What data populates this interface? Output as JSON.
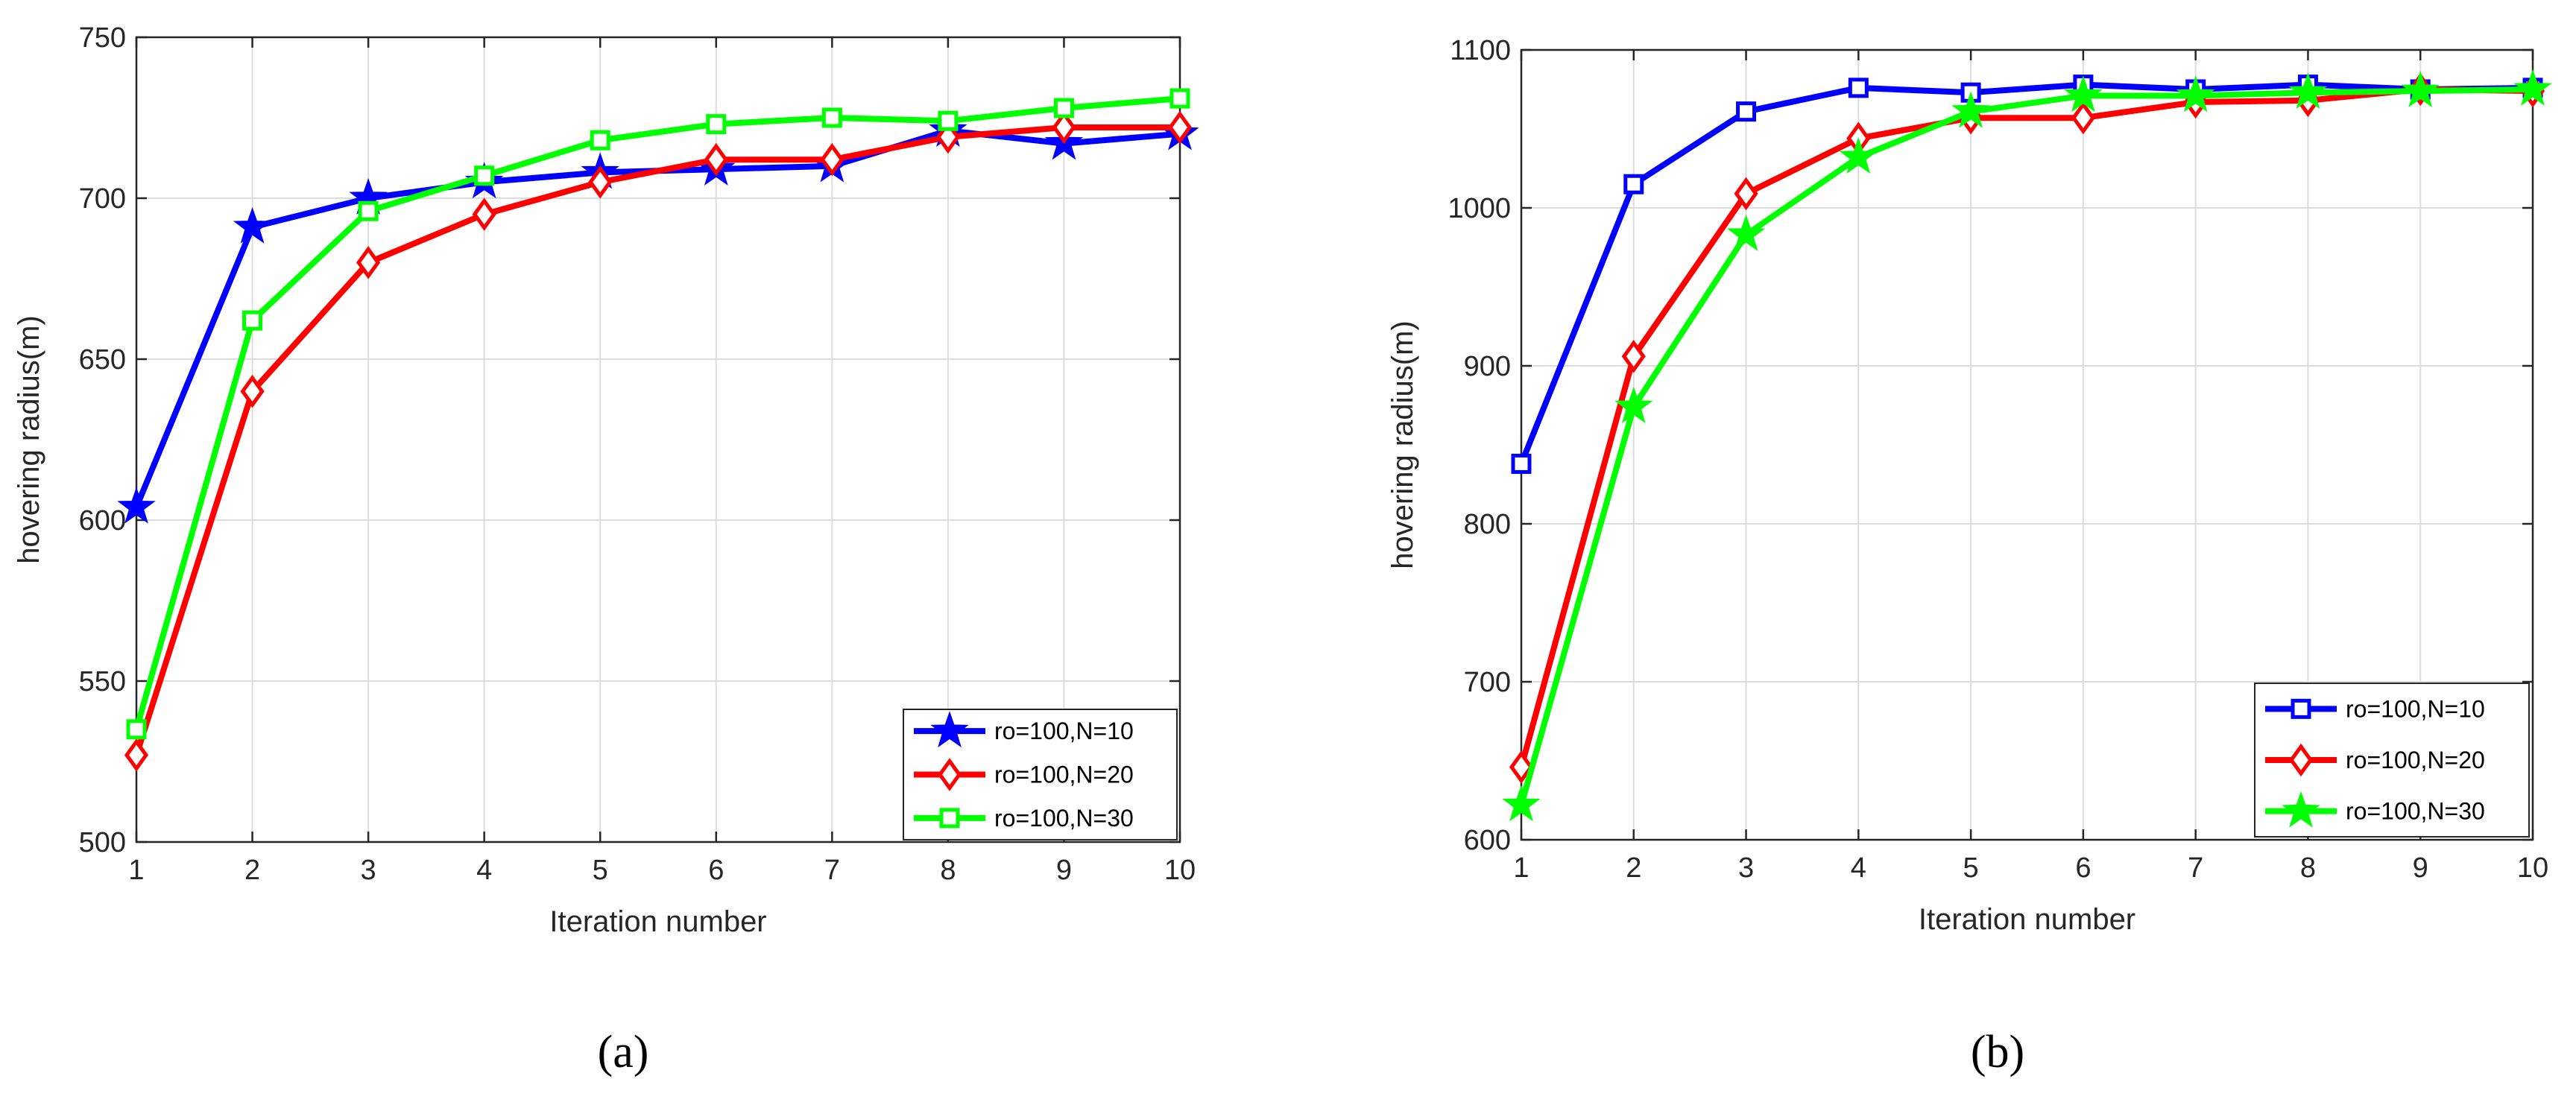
{
  "chart_data": [
    {
      "type": "line",
      "caption": "(a)",
      "xlabel": "Iteration number",
      "ylabel": "hovering radius(m)",
      "xlim": [
        1,
        10
      ],
      "ylim": [
        500,
        750
      ],
      "x": [
        1,
        2,
        3,
        4,
        5,
        6,
        7,
        8,
        9,
        10
      ],
      "xticks": [
        "1",
        "2",
        "3",
        "4",
        "5",
        "6",
        "7",
        "8",
        "9",
        "10"
      ],
      "yticks": [
        "500",
        "550",
        "600",
        "650",
        "700",
        "750"
      ],
      "grid": true,
      "legend_position": "bottom-right",
      "series": [
        {
          "name": "ro=100,N=10",
          "color": "#0000ff",
          "marker": "star",
          "values": [
            604,
            691,
            700,
            705,
            708,
            709,
            710,
            721,
            717,
            720
          ]
        },
        {
          "name": "ro=100,N=20",
          "color": "#ff0000",
          "marker": "diamond",
          "values": [
            527,
            640,
            680,
            695,
            705,
            712,
            712,
            719,
            722,
            722
          ]
        },
        {
          "name": "ro=100,N=30",
          "color": "#00ff00",
          "marker": "square",
          "values": [
            535,
            662,
            696,
            707,
            718,
            723,
            725,
            724,
            728,
            731
          ]
        }
      ]
    },
    {
      "type": "line",
      "caption": "(b)",
      "xlabel": "Iteration number",
      "ylabel": "hovering radius(m)",
      "xlim": [
        1,
        10
      ],
      "ylim": [
        600,
        1100
      ],
      "x": [
        1,
        2,
        3,
        4,
        5,
        6,
        7,
        8,
        9,
        10
      ],
      "xticks": [
        "1",
        "2",
        "3",
        "4",
        "5",
        "6",
        "7",
        "8",
        "9",
        "10"
      ],
      "yticks": [
        "600",
        "700",
        "800",
        "900",
        "1000",
        "1100"
      ],
      "grid": true,
      "legend_position": "bottom-right",
      "series": [
        {
          "name": "ro=100,N=10",
          "color": "#0000ff",
          "marker": "square",
          "values": [
            838,
            1015,
            1061,
            1076,
            1073,
            1078,
            1075,
            1078,
            1075,
            1076
          ]
        },
        {
          "name": "ro=100,N=20",
          "color": "#ff0000",
          "marker": "diamond",
          "values": [
            646,
            906,
            1009,
            1044,
            1057,
            1057,
            1067,
            1068,
            1075,
            1074
          ]
        },
        {
          "name": "ro=100,N=30",
          "color": "#00ff00",
          "marker": "star",
          "values": [
            622,
            874,
            983,
            1032,
            1061,
            1071,
            1071,
            1073,
            1074,
            1075
          ]
        }
      ]
    }
  ]
}
